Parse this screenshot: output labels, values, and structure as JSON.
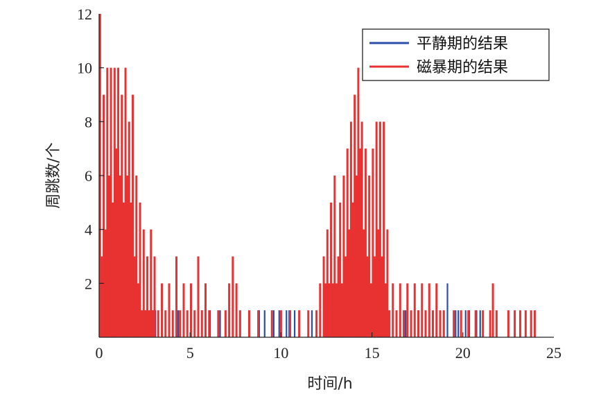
{
  "chart_data": {
    "type": "line",
    "xlabel": "时间/h",
    "ylabel": "周跳数/个",
    "xlim": [
      0,
      25
    ],
    "ylim": [
      0,
      12
    ],
    "xticks": [
      "0",
      "5",
      "10",
      "15",
      "20",
      "25"
    ],
    "yticks": [
      "2",
      "4",
      "6",
      "8",
      "10",
      "12"
    ],
    "grid": false,
    "legend": {
      "position": "top-right"
    },
    "series": [
      {
        "name": "平静期的结果",
        "color": "#2b4fa8",
        "values": [
          [
            0.15,
            1
          ],
          [
            0.75,
            1
          ],
          [
            0.85,
            1
          ],
          [
            1.4,
            1
          ],
          [
            1.95,
            1
          ],
          [
            2.55,
            1
          ],
          [
            2.65,
            1
          ],
          [
            2.95,
            1
          ],
          [
            3.1,
            1
          ],
          [
            4.35,
            1
          ],
          [
            5.65,
            1
          ],
          [
            6.1,
            1
          ],
          [
            6.65,
            1
          ],
          [
            8.8,
            1
          ],
          [
            9.1,
            1
          ],
          [
            9.6,
            1
          ],
          [
            9.9,
            1
          ],
          [
            10.3,
            1
          ],
          [
            10.45,
            1
          ],
          [
            10.75,
            1
          ],
          [
            11.7,
            1
          ],
          [
            13.05,
            1
          ],
          [
            14.3,
            1
          ],
          [
            15.1,
            1
          ],
          [
            15.55,
            1
          ],
          [
            16.85,
            1
          ],
          [
            17.55,
            1
          ],
          [
            19.15,
            2
          ],
          [
            19.6,
            1
          ],
          [
            19.75,
            1
          ],
          [
            20.15,
            1
          ],
          [
            20.35,
            1
          ],
          [
            20.75,
            1
          ],
          [
            20.95,
            1
          ]
        ]
      },
      {
        "name": "磁暴期的结果",
        "color": "#e83232",
        "values": [
          [
            0.05,
            12
          ],
          [
            0.15,
            3
          ],
          [
            0.25,
            9
          ],
          [
            0.35,
            4
          ],
          [
            0.45,
            10
          ],
          [
            0.55,
            6
          ],
          [
            0.65,
            10
          ],
          [
            0.75,
            5
          ],
          [
            0.85,
            10
          ],
          [
            0.95,
            7
          ],
          [
            1.05,
            10
          ],
          [
            1.15,
            6
          ],
          [
            1.25,
            9
          ],
          [
            1.35,
            5
          ],
          [
            1.45,
            10
          ],
          [
            1.55,
            6
          ],
          [
            1.65,
            8
          ],
          [
            1.75,
            5
          ],
          [
            1.85,
            9
          ],
          [
            1.95,
            3
          ],
          [
            2.05,
            6
          ],
          [
            2.15,
            2
          ],
          [
            2.25,
            5
          ],
          [
            2.35,
            1
          ],
          [
            2.45,
            4
          ],
          [
            2.55,
            1
          ],
          [
            2.65,
            3
          ],
          [
            2.75,
            1
          ],
          [
            2.85,
            4
          ],
          [
            2.95,
            1
          ],
          [
            3.05,
            3
          ],
          [
            3.25,
            1
          ],
          [
            3.45,
            2
          ],
          [
            3.65,
            1
          ],
          [
            3.85,
            2
          ],
          [
            4.05,
            1
          ],
          [
            4.25,
            3
          ],
          [
            4.45,
            1
          ],
          [
            4.65,
            2
          ],
          [
            4.85,
            1
          ],
          [
            5.05,
            2
          ],
          [
            5.25,
            1
          ],
          [
            5.45,
            3
          ],
          [
            5.65,
            1
          ],
          [
            5.85,
            2
          ],
          [
            6.05,
            1
          ],
          [
            6.55,
            1
          ],
          [
            6.95,
            1
          ],
          [
            7.15,
            2
          ],
          [
            7.35,
            3
          ],
          [
            7.55,
            2
          ],
          [
            7.75,
            1
          ],
          [
            8.25,
            1
          ],
          [
            8.75,
            1
          ],
          [
            9.5,
            1
          ],
          [
            10.0,
            1
          ],
          [
            10.5,
            1
          ],
          [
            11.0,
            1
          ],
          [
            11.5,
            1
          ],
          [
            11.95,
            1
          ],
          [
            12.15,
            2
          ],
          [
            12.35,
            3
          ],
          [
            12.45,
            2
          ],
          [
            12.55,
            4
          ],
          [
            12.65,
            2
          ],
          [
            12.75,
            5
          ],
          [
            12.85,
            2
          ],
          [
            12.95,
            6
          ],
          [
            13.05,
            2
          ],
          [
            13.15,
            3
          ],
          [
            13.25,
            5
          ],
          [
            13.35,
            2
          ],
          [
            13.45,
            6
          ],
          [
            13.55,
            3
          ],
          [
            13.65,
            7
          ],
          [
            13.75,
            4
          ],
          [
            13.85,
            8
          ],
          [
            13.95,
            5
          ],
          [
            14.05,
            9
          ],
          [
            14.15,
            6
          ],
          [
            14.25,
            10
          ],
          [
            14.35,
            7
          ],
          [
            14.45,
            8
          ],
          [
            14.55,
            4
          ],
          [
            14.65,
            7
          ],
          [
            14.75,
            3
          ],
          [
            14.85,
            6
          ],
          [
            14.95,
            2
          ],
          [
            15.05,
            7
          ],
          [
            15.15,
            3
          ],
          [
            15.25,
            8
          ],
          [
            15.35,
            4
          ],
          [
            15.45,
            8
          ],
          [
            15.55,
            3
          ],
          [
            15.65,
            8
          ],
          [
            15.75,
            2
          ],
          [
            15.85,
            4
          ],
          [
            15.95,
            1
          ],
          [
            16.15,
            2
          ],
          [
            16.35,
            1
          ],
          [
            16.55,
            2
          ],
          [
            16.75,
            1
          ],
          [
            16.95,
            2
          ],
          [
            17.15,
            1
          ],
          [
            17.35,
            2
          ],
          [
            17.55,
            1
          ],
          [
            17.75,
            2
          ],
          [
            17.95,
            1
          ],
          [
            18.15,
            2
          ],
          [
            18.35,
            1
          ],
          [
            18.55,
            2
          ],
          [
            18.75,
            1
          ],
          [
            18.95,
            1
          ],
          [
            19.5,
            1
          ],
          [
            19.9,
            1
          ],
          [
            20.3,
            1
          ],
          [
            20.7,
            1
          ],
          [
            21.1,
            1
          ],
          [
            21.5,
            1
          ],
          [
            21.65,
            2
          ],
          [
            21.85,
            1
          ],
          [
            22.5,
            1
          ],
          [
            22.85,
            1
          ],
          [
            23.15,
            1
          ],
          [
            23.45,
            1
          ],
          [
            23.75,
            1
          ],
          [
            23.95,
            1
          ]
        ]
      }
    ]
  }
}
